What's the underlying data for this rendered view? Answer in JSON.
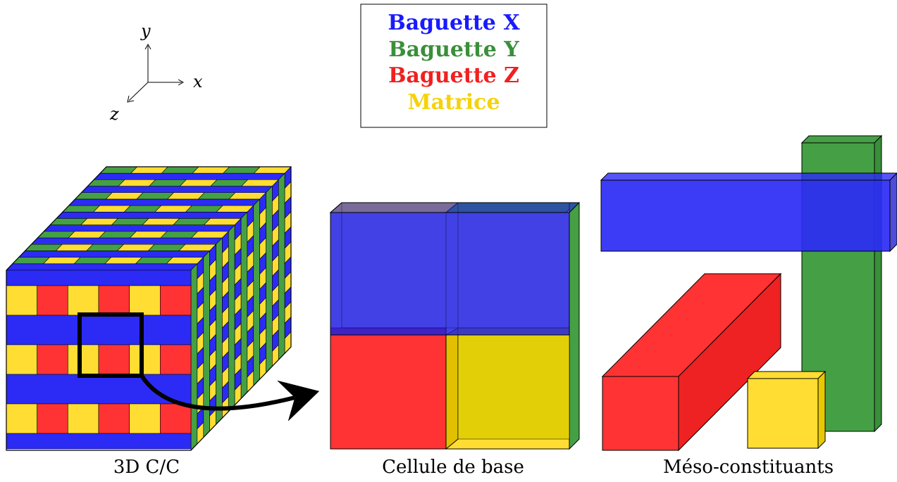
{
  "axes": {
    "x": "x",
    "y": "y",
    "z": "z"
  },
  "legend": {
    "items": [
      {
        "text": "Baguette",
        "letter": "X",
        "color": "#1a1aff"
      },
      {
        "text": "Baguette",
        "letter": "Y",
        "color": "#3a8f3a"
      },
      {
        "text": "Baguette",
        "letter": "Z",
        "color": "#f02020"
      },
      {
        "text": "Matrice",
        "letter": "",
        "color": "#f5d20a"
      }
    ]
  },
  "colors": {
    "x": "#2b2bf5",
    "y": "#45a045",
    "z": "#ff3333",
    "matrix": "#ffdd33"
  },
  "captions": {
    "block": "3D C/C",
    "cell": "Cellule de base",
    "meso": "Méso-constituants"
  }
}
